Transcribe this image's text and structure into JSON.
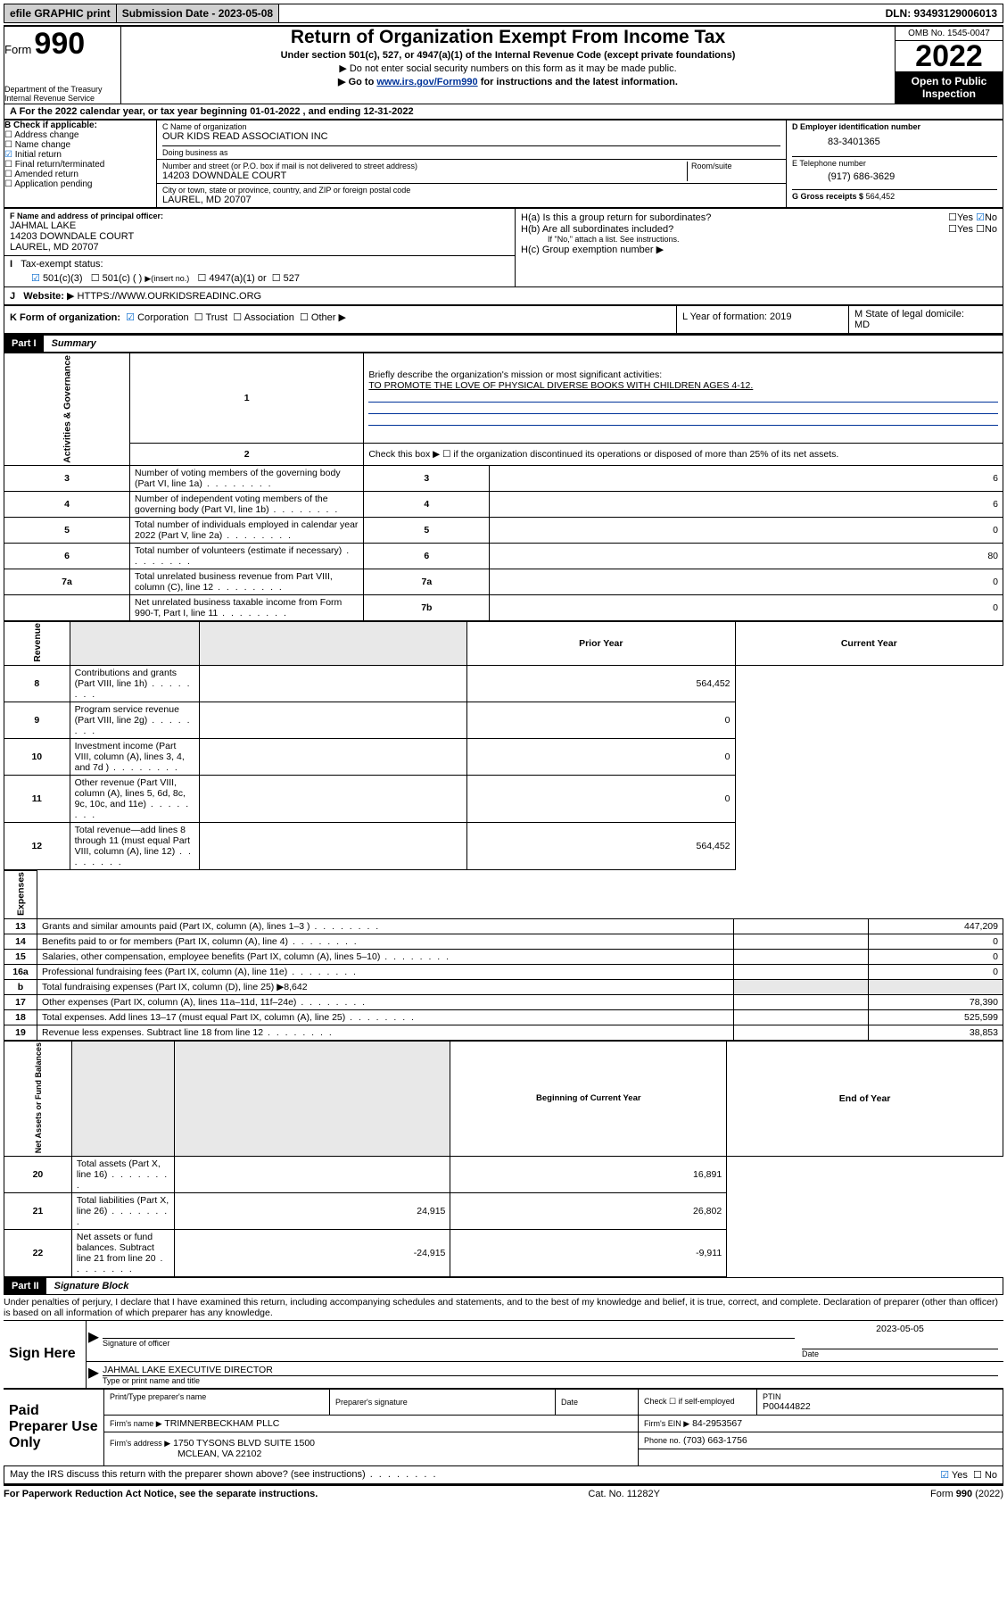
{
  "top_bar": {
    "efile": "efile GRAPHIC print",
    "submission_label": "Submission Date - 2023-05-08",
    "dln": "DLN: 93493129006013"
  },
  "header": {
    "form_word": "Form",
    "form_number": "990",
    "dept": "Department of the Treasury",
    "irs": "Internal Revenue Service",
    "title": "Return of Organization Exempt From Income Tax",
    "sub": "Under section 501(c), 527, or 4947(a)(1) of the Internal Revenue Code (except private foundations)",
    "note1": "Do not enter social security numbers on this form as it may be made public.",
    "note2_pre": "Go to ",
    "note2_link": "www.irs.gov/Form990",
    "note2_post": " for instructions and the latest information.",
    "omb": "OMB No. 1545-0047",
    "year": "2022",
    "otpi": "Open to Public Inspection"
  },
  "period": {
    "text": "A For the 2022 calendar year, or tax year beginning 01-01-2022   , and ending 12-31-2022"
  },
  "checkB": {
    "label": "B Check if applicable:",
    "items": [
      "Address change",
      "Name change",
      "Initial return",
      "Final return/terminated",
      "Amended return",
      "Application pending"
    ],
    "checked_index": 2
  },
  "blockC": {
    "label": "C Name of organization",
    "name": "OUR KIDS READ ASSOCIATION INC",
    "dba_label": "Doing business as",
    "street_label": "Number and street (or P.O. box if mail is not delivered to street address)",
    "room_label": "Room/suite",
    "street": "14203 DOWNDALE COURT",
    "city_label": "City or town, state or province, country, and ZIP or foreign postal code",
    "city": "LAUREL, MD  20707"
  },
  "blockD": {
    "label": "D Employer identification number",
    "value": "83-3401365"
  },
  "blockE": {
    "label": "E Telephone number",
    "value": "(917) 686-3629"
  },
  "blockG": {
    "label": "G Gross receipts $",
    "value": "564,452"
  },
  "blockF": {
    "label": "F  Name and address of principal officer:",
    "name": "JAHMAL LAKE",
    "street": "14203 DOWNDALE COURT",
    "city": "LAUREL, MD  20707"
  },
  "blockH": {
    "a": "H(a)  Is this a group return for subordinates?",
    "b": "H(b)  Are all subordinates included?",
    "b_note": "If \"No,\" attach a list. See instructions.",
    "c": "H(c)  Group exemption number",
    "yes": "Yes",
    "no": "No"
  },
  "blockI": {
    "label": "Tax-exempt status:",
    "o1": "501(c)(3)",
    "o2": "501(c) (  )",
    "o2_note": "(insert no.)",
    "o3": "4947(a)(1) or",
    "o4": "527"
  },
  "blockJ": {
    "label": "Website:",
    "value": "HTTPS://WWW.OURKIDSREADINC.ORG"
  },
  "blockK": {
    "label": "K Form of organization:",
    "corp": "Corporation",
    "trust": "Trust",
    "assoc": "Association",
    "other": "Other"
  },
  "blockL": {
    "label": "L Year of formation: 2019"
  },
  "blockM": {
    "label": "M State of legal domicile:",
    "value": "MD"
  },
  "part1": {
    "header": "Part I",
    "title": "Summary",
    "mission_label": "Briefly describe the organization's mission or most significant activities:",
    "mission": "TO PROMOTE THE LOVE OF PHYSICAL DIVERSE BOOKS WITH CHILDREN AGES 4-12.",
    "check2": "Check this box ▶ ☐  if the organization discontinued its operations or disposed of more than 25% of its net assets.",
    "gov_rows": [
      {
        "n": "3",
        "t": "Number of voting members of the governing body (Part VI, line 1a)",
        "k": "3",
        "v": "6"
      },
      {
        "n": "4",
        "t": "Number of independent voting members of the governing body (Part VI, line 1b)",
        "k": "4",
        "v": "6"
      },
      {
        "n": "5",
        "t": "Total number of individuals employed in calendar year 2022 (Part V, line 2a)",
        "k": "5",
        "v": "0"
      },
      {
        "n": "6",
        "t": "Total number of volunteers (estimate if necessary)",
        "k": "6",
        "v": "80"
      },
      {
        "n": "7a",
        "t": "Total unrelated business revenue from Part VIII, column (C), line 12",
        "k": "7a",
        "v": "0"
      },
      {
        "n": "",
        "t": "Net unrelated business taxable income from Form 990-T, Part I, line 11",
        "k": "7b",
        "v": "0"
      }
    ],
    "col_prior": "Prior Year",
    "col_current": "Current Year",
    "rev_rows": [
      {
        "n": "8",
        "t": "Contributions and grants (Part VIII, line 1h)",
        "p": "",
        "c": "564,452"
      },
      {
        "n": "9",
        "t": "Program service revenue (Part VIII, line 2g)",
        "p": "",
        "c": "0"
      },
      {
        "n": "10",
        "t": "Investment income (Part VIII, column (A), lines 3, 4, and 7d )",
        "p": "",
        "c": "0"
      },
      {
        "n": "11",
        "t": "Other revenue (Part VIII, column (A), lines 5, 6d, 8c, 9c, 10c, and 11e)",
        "p": "",
        "c": "0"
      },
      {
        "n": "12",
        "t": "Total revenue—add lines 8 through 11 (must equal Part VIII, column (A), line 12)",
        "p": "",
        "c": "564,452"
      }
    ],
    "exp_rows": [
      {
        "n": "13",
        "t": "Grants and similar amounts paid (Part IX, column (A), lines 1–3 )",
        "p": "",
        "c": "447,209"
      },
      {
        "n": "14",
        "t": "Benefits paid to or for members (Part IX, column (A), line 4)",
        "p": "",
        "c": "0"
      },
      {
        "n": "15",
        "t": "Salaries, other compensation, employee benefits (Part IX, column (A), lines 5–10)",
        "p": "",
        "c": "0"
      },
      {
        "n": "16a",
        "t": "Professional fundraising fees (Part IX, column (A), line 11e)",
        "p": "",
        "c": "0"
      },
      {
        "n": "b",
        "t": "Total fundraising expenses (Part IX, column (D), line 25) ▶8,642",
        "p": "—gray—",
        "c": "—gray—"
      },
      {
        "n": "17",
        "t": "Other expenses (Part IX, column (A), lines 11a–11d, 11f–24e)",
        "p": "",
        "c": "78,390"
      },
      {
        "n": "18",
        "t": "Total expenses. Add lines 13–17 (must equal Part IX, column (A), line 25)",
        "p": "",
        "c": "525,599"
      },
      {
        "n": "19",
        "t": "Revenue less expenses. Subtract line 18 from line 12",
        "p": "",
        "c": "38,853"
      }
    ],
    "col_begin": "Beginning of Current Year",
    "col_end": "End of Year",
    "net_rows": [
      {
        "n": "20",
        "t": "Total assets (Part X, line 16)",
        "p": "",
        "c": "16,891"
      },
      {
        "n": "21",
        "t": "Total liabilities (Part X, line 26)",
        "p": "24,915",
        "c": "26,802"
      },
      {
        "n": "22",
        "t": "Net assets or fund balances. Subtract line 21 from line 20",
        "p": "-24,915",
        "c": "-9,911"
      }
    ],
    "vtabs": {
      "gov": "Activities & Governance",
      "rev": "Revenue",
      "exp": "Expenses",
      "net": "Net Assets or Fund Balances"
    }
  },
  "part2": {
    "header": "Part II",
    "title": "Signature Block",
    "perjury": "Under penalties of perjury, I declare that I have examined this return, including accompanying schedules and statements, and to the best of my knowledge and belief, it is true, correct, and complete. Declaration of preparer (other than officer) is based on all information of which preparer has any knowledge.",
    "sign_here": "Sign Here",
    "sig_officer": "Signature of officer",
    "date_label": "Date",
    "date_value": "2023-05-05",
    "name_title": "JAHMAL LAKE  EXECUTIVE DIRECTOR",
    "type_name": "Type or print name and title",
    "paid": "Paid Preparer Use Only",
    "col_name": "Print/Type preparer's name",
    "col_sig": "Preparer's signature",
    "col_date": "Date",
    "check_self": "Check ☐ if self-employed",
    "ptin_label": "PTIN",
    "ptin": "P00444822",
    "firm_name_label": "Firm's name   ▶",
    "firm_name": "TRIMNERBECKHAM PLLC",
    "firm_ein_label": "Firm's EIN ▶",
    "firm_ein": "84-2953567",
    "firm_addr_label": "Firm's address ▶",
    "firm_addr1": "1750 TYSONS BLVD SUITE 1500",
    "firm_addr2": "MCLEAN, VA  22102",
    "phone_label": "Phone no.",
    "phone": "(703) 663-1756",
    "discuss": "May the IRS discuss this return with the preparer shown above? (see instructions)",
    "yes": "Yes",
    "no": "No"
  },
  "footer": {
    "left": "For Paperwork Reduction Act Notice, see the separate instructions.",
    "mid": "Cat. No. 11282Y",
    "right": "Form 990 (2022)"
  }
}
